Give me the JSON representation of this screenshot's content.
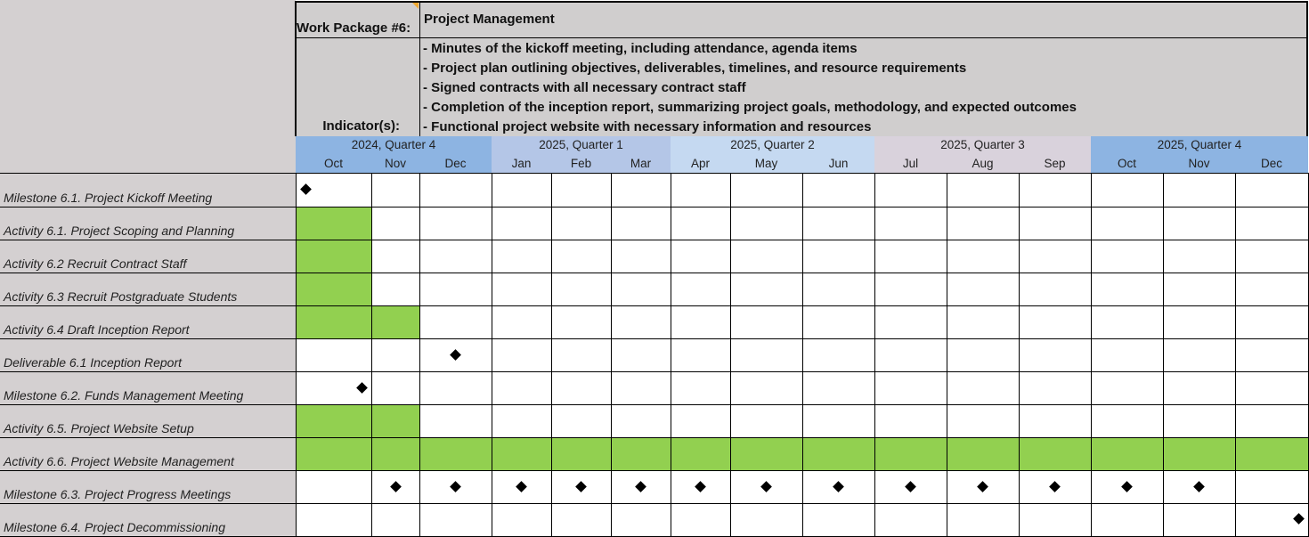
{
  "work_package": {
    "label": "Work Package #6:",
    "title": "Project Management"
  },
  "indicators": {
    "label": "Indicator(s):",
    "items": [
      "- Minutes of the kickoff meeting, including attendance, agenda items",
      "- Project plan outlining objectives, deliverables, timelines, and resource requirements",
      "- Signed contracts with all necessary contract staff",
      "- Completion of the inception report, summarizing project goals, methodology, and expected outcomes",
      "- Functional project website with necessary information and resources"
    ]
  },
  "quarters": [
    {
      "label": "2024, Quarter 4",
      "color": "#8db4e2"
    },
    {
      "label": "2025, Quarter 1",
      "color": "#b4c6e7"
    },
    {
      "label": "2025, Quarter 2",
      "color": "#c5d9f1"
    },
    {
      "label": "2025, Quarter 3",
      "color": "#d9d2dc"
    },
    {
      "label": "2025, Quarter 4",
      "color": "#8db4e2"
    }
  ],
  "months": [
    "Oct",
    "Nov",
    "Dec",
    "Jan",
    "Feb",
    "Mar",
    "Apr",
    "May",
    "Jun",
    "Jul",
    "Aug",
    "Sep",
    "Oct",
    "Nov",
    "Dec"
  ],
  "colors": {
    "bar": "#92d050",
    "label_bg": "#d4d0d1",
    "header_bg": "#d0cece"
  },
  "rows": [
    {
      "label": "Milestone 6.1. Project Kickoff Meeting",
      "type": "milestone",
      "months": [
        0
      ],
      "anchor": "left"
    },
    {
      "label": "Activity 6.1. Project Scoping and Planning",
      "type": "activity",
      "months": [
        0
      ]
    },
    {
      "label": "Activity 6.2 Recruit Contract Staff",
      "type": "activity",
      "months": [
        0
      ]
    },
    {
      "label": "Activity 6.3 Recruit Postgraduate Students",
      "type": "activity",
      "months": [
        0
      ]
    },
    {
      "label": "Activity 6.4 Draft Inception Report",
      "type": "activity",
      "months": [
        0,
        1
      ]
    },
    {
      "label": "Deliverable 6.1 Inception Report",
      "type": "milestone",
      "months": [
        2
      ],
      "anchor": "center"
    },
    {
      "label": "Milestone 6.2. Funds Management Meeting",
      "type": "milestone",
      "months": [
        0
      ],
      "anchor": "right"
    },
    {
      "label": "Activity 6.5. Project Website Setup",
      "type": "activity",
      "months": [
        0,
        1
      ]
    },
    {
      "label": "Activity 6.6. Project Website Management",
      "type": "activity",
      "months": [
        0,
        1,
        2,
        3,
        4,
        5,
        6,
        7,
        8,
        9,
        10,
        11,
        12,
        13,
        14
      ]
    },
    {
      "label": "Milestone 6.3. Project Progress Meetings",
      "type": "milestone",
      "months": [
        1,
        2,
        3,
        4,
        5,
        6,
        7,
        8,
        9,
        10,
        11,
        12,
        13
      ],
      "anchor": "center"
    },
    {
      "label": "Milestone 6.4. Project Decommissioning",
      "type": "milestone",
      "months": [
        14
      ],
      "anchor": "right"
    }
  ]
}
